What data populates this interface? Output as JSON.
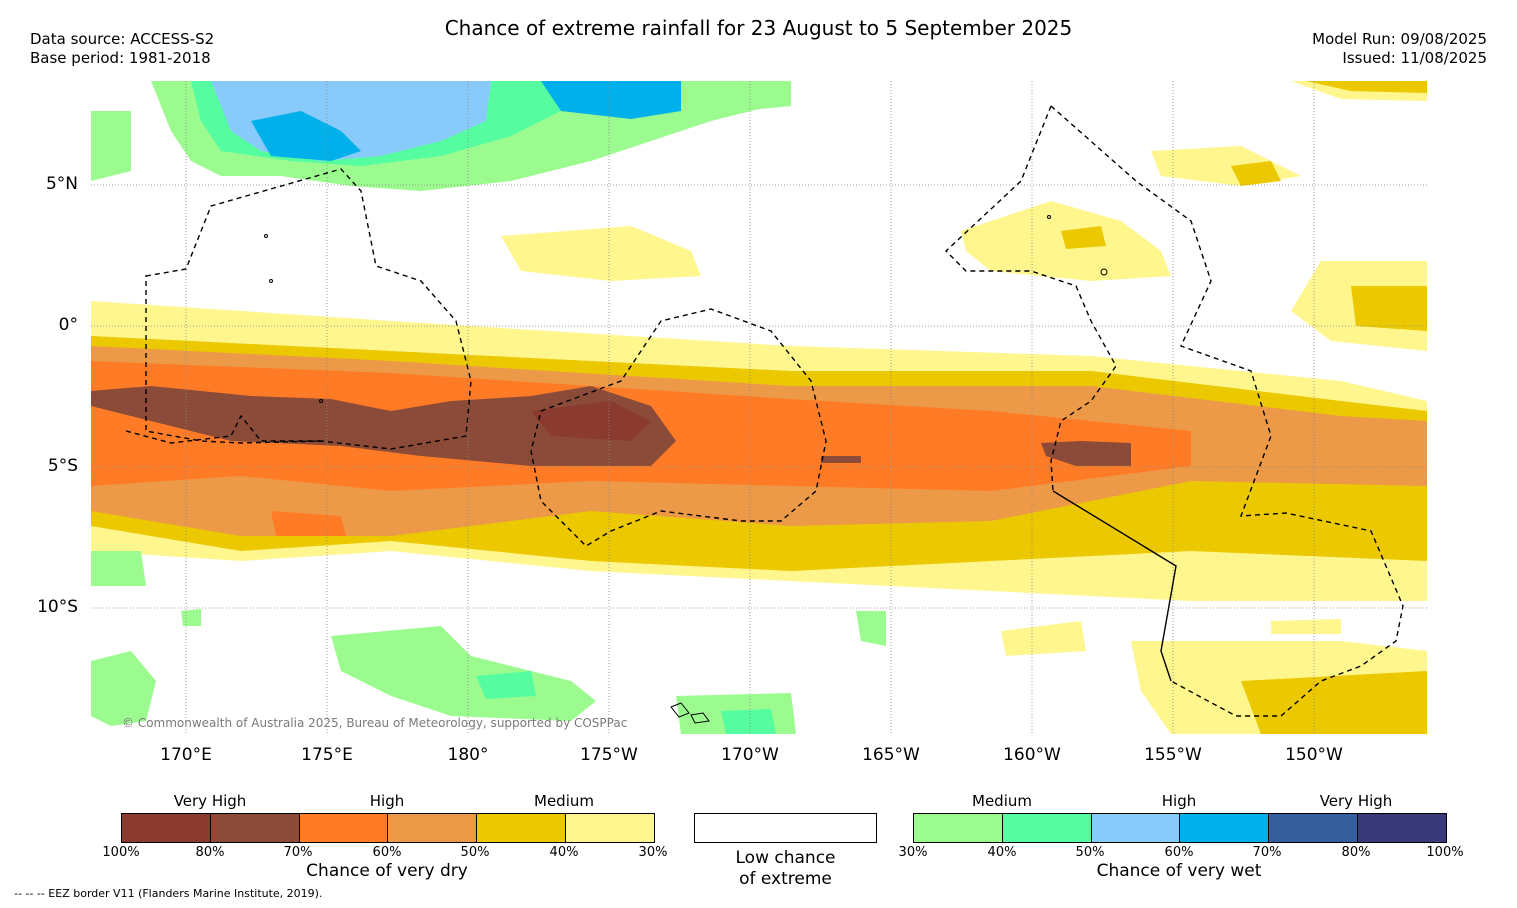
{
  "header": {
    "title": "Chance of extreme rainfall for 23 August to 5 September 2025",
    "data_source": "Data source: ACCESS-S2",
    "base_period": "Base period: 1981-2018",
    "model_run": "Model Run: 09/08/2025",
    "issued": "Issued: 11/08/2025"
  },
  "map": {
    "lat_labels": [
      "5°N",
      "0°",
      "5°S",
      "10°S"
    ],
    "lon_labels": [
      "170°E",
      "175°E",
      "180°",
      "175°W",
      "170°W",
      "165°W",
      "160°W",
      "155°W",
      "150°W"
    ],
    "copyright": "© Commonwealth of Australia 2025, Bureau of Meteorology, supported by COSPPac"
  },
  "legend_dry": {
    "levels": [
      "Very High",
      "High",
      "Medium"
    ],
    "ticks": [
      "100%",
      "80%",
      "70%",
      "60%",
      "50%",
      "40%",
      "30%"
    ],
    "caption": "Chance of very dry",
    "colors": [
      "#8b3a2f",
      "#8c4a38",
      "#ff7b25",
      "#ec9a48",
      "#ecc800",
      "#fff68e"
    ]
  },
  "legend_neutral": {
    "caption_line1": "Low chance",
    "caption_line2": "of extreme",
    "color": "#ffffff"
  },
  "legend_wet": {
    "levels": [
      "Medium",
      "High",
      "Very High"
    ],
    "ticks": [
      "30%",
      "40%",
      "50%",
      "60%",
      "70%",
      "80%",
      "100%"
    ],
    "caption": "Chance of very wet",
    "colors": [
      "#9bfb8e",
      "#55fda0",
      "#88cafa",
      "#00b0ea",
      "#355e9c",
      "#3b3a78"
    ]
  },
  "footnote": "--  --  -- EEZ border V11 (Flanders Marine Institute, 2019)."
}
